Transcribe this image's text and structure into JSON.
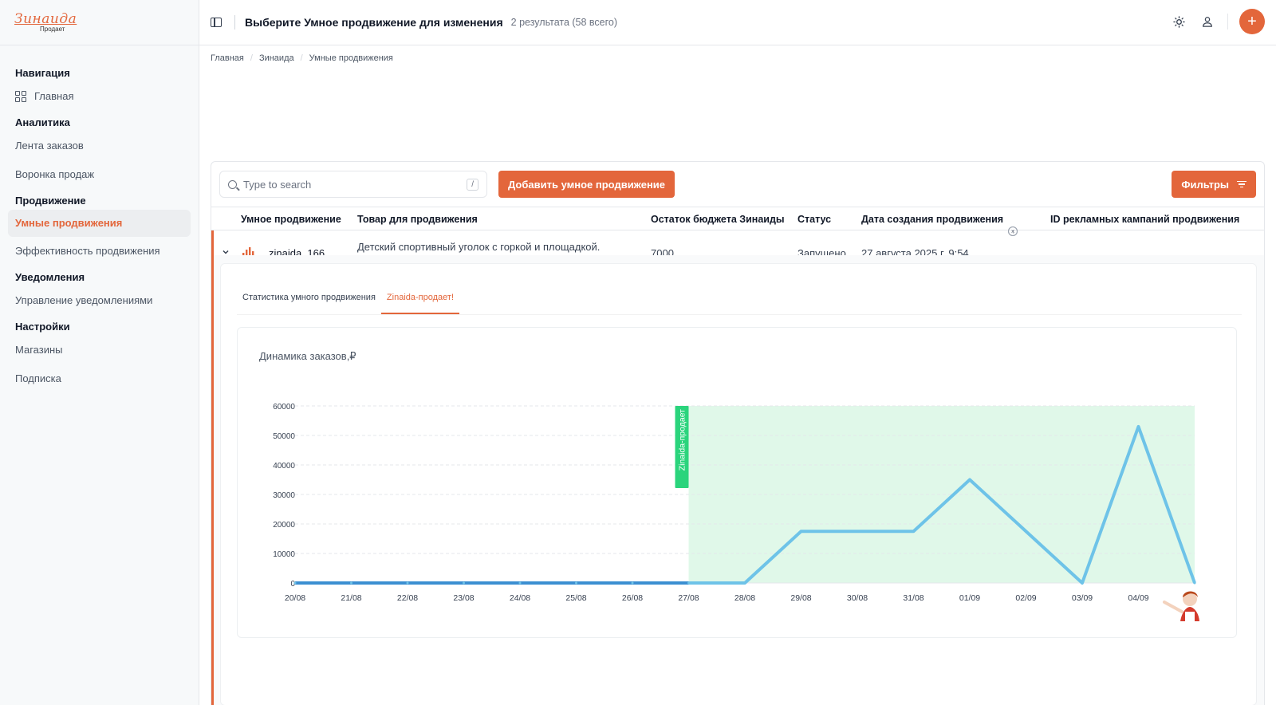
{
  "sidebar": {
    "logo_main": "Зинаида",
    "logo_sub": "Продает",
    "sections": [
      {
        "title": "Навигация",
        "items": [
          {
            "label": "Главная",
            "icon": "dashboard-icon",
            "active": false
          }
        ]
      },
      {
        "title": "Аналитика",
        "items": [
          {
            "label": "Лента заказов",
            "active": false
          },
          {
            "label": "Воронка продаж",
            "active": false
          }
        ]
      },
      {
        "title": "Продвижение",
        "items": [
          {
            "label": "Умные продвижения",
            "active": true
          },
          {
            "label": "Эффективность продвижения",
            "active": false
          }
        ]
      },
      {
        "title": "Уведомления",
        "items": [
          {
            "label": "Управление уведомлениями",
            "active": false
          }
        ]
      },
      {
        "title": "Настройки",
        "items": [
          {
            "label": "Магазины",
            "active": false
          },
          {
            "label": "Подписка",
            "active": false
          }
        ]
      }
    ]
  },
  "header": {
    "title": "Выберите Умное продвижение для изменения",
    "count": "2 результата (58 всего)",
    "icons": [
      "sidebar-toggle-icon",
      "sun-icon",
      "user-icon",
      "plus-icon"
    ]
  },
  "breadcrumb": [
    "Главная",
    "Зинаида",
    "Умные продвижения"
  ],
  "toolbar": {
    "search_placeholder": "Type to search",
    "search_shortcut": "/",
    "add_label": "Добавить умное продвижение",
    "filter_label": "Фильтры"
  },
  "table": {
    "columns": [
      "Умное продвижение",
      "Товар для продвижения",
      "Остаток бюджета Зинаиды",
      "Статус",
      "Дата создания продвижения",
      "ID рекламных кампаний продвижения"
    ],
    "rows": [
      {
        "name": "zinaida_166",
        "product": "Детский спортивный уголок с горкой и площадкой. Складной",
        "budget": "7000",
        "status": "Запущено",
        "created": "27 августа 2025 г. 9:54"
      }
    ]
  },
  "detail": {
    "tabs": [
      {
        "label": "Статистика умного продвижения",
        "active": false
      },
      {
        "label": "Zinaida-продает!",
        "active": true
      }
    ]
  },
  "colors": {
    "accent": "#e3663b",
    "line": "#6ec3e8",
    "highlight": "#e0f8e9",
    "marker": "#2ad47c"
  },
  "chart_data": {
    "type": "line",
    "title": "Динамика заказов,₽",
    "xlabel": "",
    "ylabel": "",
    "x": [
      "20/08",
      "21/08",
      "22/08",
      "23/08",
      "24/08",
      "25/08",
      "26/08",
      "27/08",
      "28/08",
      "29/08",
      "30/08",
      "31/08",
      "01/09",
      "02/09",
      "03/09",
      "04/09",
      "05/09"
    ],
    "x_ticks": [
      "20/08",
      "21/08",
      "22/08",
      "23/08",
      "24/08",
      "25/08",
      "26/08",
      "27/08",
      "28/08",
      "29/08",
      "30/08",
      "31/08",
      "01/09",
      "02/09",
      "03/09",
      "04/09"
    ],
    "series": [
      {
        "values": [
          0,
          0,
          0,
          0,
          0,
          0,
          0,
          0,
          0,
          17500,
          17500,
          17500,
          35000,
          17500,
          0,
          53000,
          0
        ]
      }
    ],
    "yticks": [
      0,
      10000,
      20000,
      30000,
      40000,
      50000,
      60000
    ],
    "ylim": [
      0,
      60000
    ],
    "grid": true,
    "highlight_region": {
      "from": "27/08",
      "to": "05/09",
      "label": "Zinaida-продает"
    }
  }
}
